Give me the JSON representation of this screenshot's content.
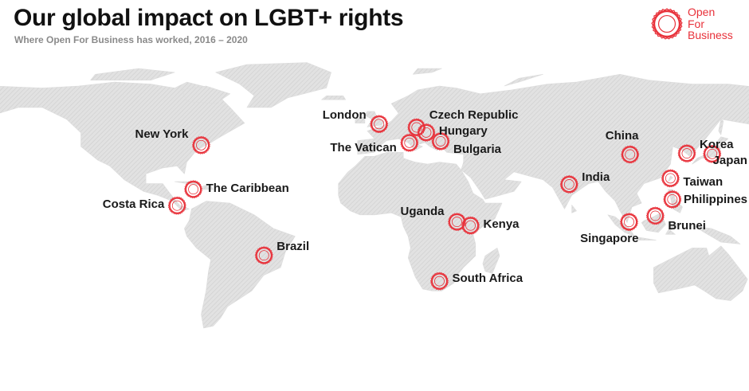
{
  "title": "Our global impact on LGBT+ rights",
  "subtitle": "Where Open For Business has worked, 2016 – 2020",
  "logo": {
    "lines": [
      "Open",
      "For",
      "Business"
    ],
    "icon": "geometric-rose-icon",
    "color": "#e8313a"
  },
  "colors": {
    "land": "#e2e2e2",
    "marker": "#e8313a",
    "label": "#1a1a1a"
  },
  "locations": [
    {
      "name": "London",
      "lat": 51.5,
      "lon": -0.1
    },
    {
      "name": "Czech Republic",
      "lat": 49.8,
      "lon": 15.5
    },
    {
      "name": "Hungary",
      "lat": 47.2,
      "lon": 19.5
    },
    {
      "name": "The Vatican",
      "lat": 41.9,
      "lon": 12.5
    },
    {
      "name": "Bulgaria",
      "lat": 42.7,
      "lon": 25.5
    },
    {
      "name": "New York",
      "lat": 40.7,
      "lon": -74.0
    },
    {
      "name": "The Caribbean",
      "lat": 18.1,
      "lon": -77.3
    },
    {
      "name": "Costa Rica",
      "lat": 9.7,
      "lon": -84.0
    },
    {
      "name": "Brazil",
      "lat": -15.8,
      "lon": -47.9
    },
    {
      "name": "Uganda",
      "lat": 1.4,
      "lon": 32.3
    },
    {
      "name": "Kenya",
      "lat": -0.5,
      "lon": 37.9
    },
    {
      "name": "South Africa",
      "lat": -29.0,
      "lon": 25.0
    },
    {
      "name": "China",
      "lat": 35.9,
      "lon": 104.2
    },
    {
      "name": "India",
      "lat": 20.6,
      "lon": 78.9
    },
    {
      "name": "Korea",
      "lat": 36.5,
      "lon": 127.8
    },
    {
      "name": "Japan",
      "lat": 36.2,
      "lon": 138.3
    },
    {
      "name": "Taiwan",
      "lat": 23.7,
      "lon": 121.0
    },
    {
      "name": "Philippines",
      "lat": 12.9,
      "lon": 121.8
    },
    {
      "name": "Brunei",
      "lat": 4.5,
      "lon": 114.7
    },
    {
      "name": "Singapore",
      "lat": 1.35,
      "lon": 103.8
    }
  ]
}
